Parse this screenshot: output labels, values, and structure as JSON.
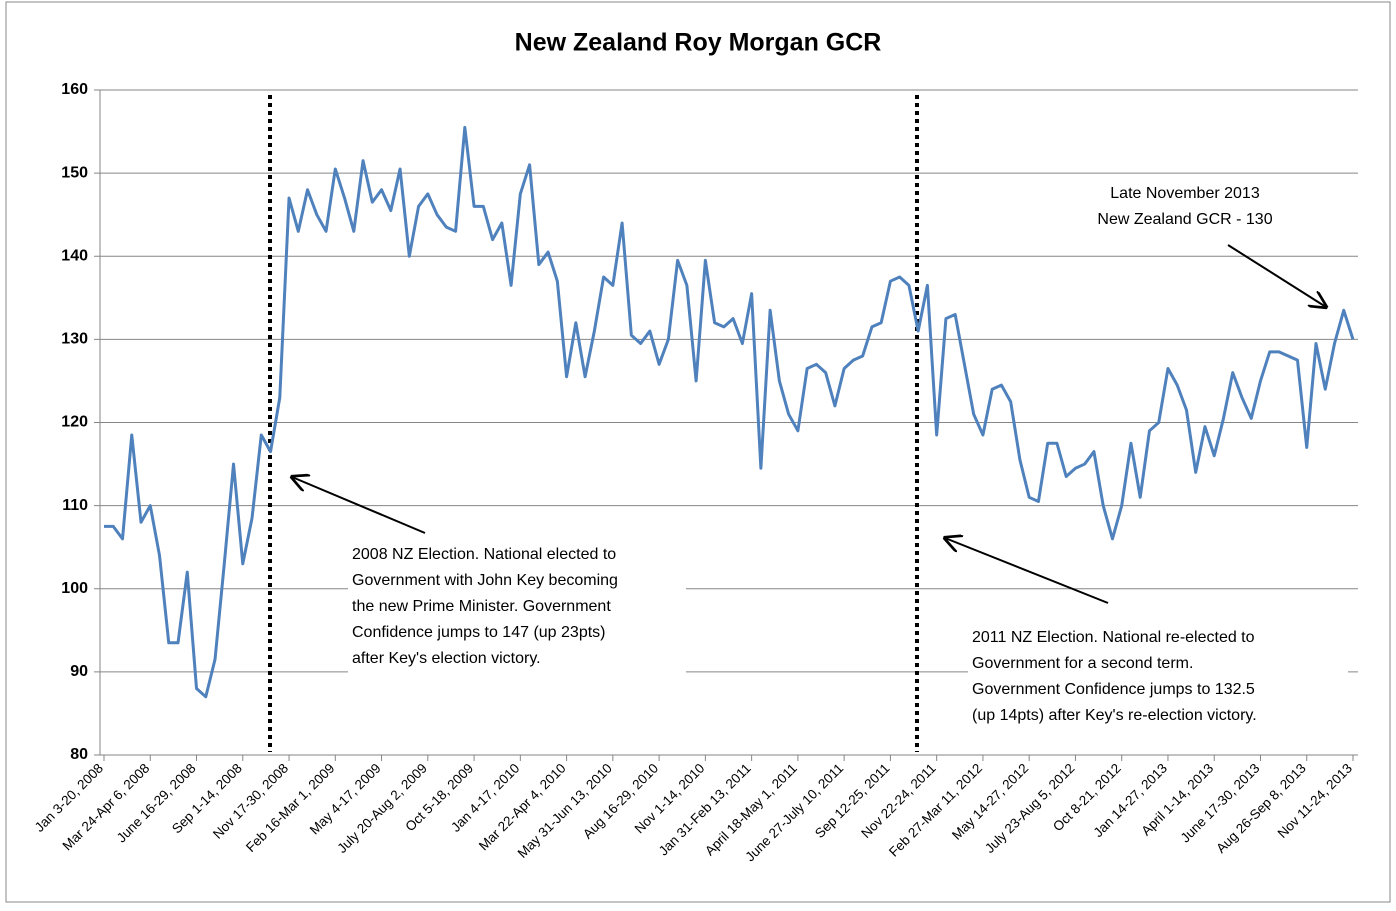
{
  "chart_data": {
    "type": "line",
    "title": "New Zealand Roy Morgan GCR",
    "categories": [
      "Jan 3-20, 2008",
      null,
      null,
      null,
      null,
      "Mar 24-Apr 6, 2008",
      null,
      null,
      null,
      null,
      "June 16-29, 2008",
      null,
      null,
      null,
      null,
      "Sep 1-14, 2008",
      null,
      null,
      null,
      null,
      "Nov 17-30, 2008",
      null,
      null,
      null,
      null,
      "Feb 16-Mar 1, 2009",
      null,
      null,
      null,
      null,
      "May 4-17, 2009",
      null,
      null,
      null,
      null,
      "July 20-Aug 2, 2009",
      null,
      null,
      null,
      null,
      "Oct 5-18, 2009",
      null,
      null,
      null,
      null,
      "Jan 4-17, 2010",
      null,
      null,
      null,
      null,
      "Mar 22-Apr 4, 2010",
      null,
      null,
      null,
      null,
      "May 31-Jun 13, 2010",
      null,
      null,
      null,
      null,
      "Aug 16-29, 2010",
      null,
      null,
      null,
      null,
      "Nov 1-14, 2010",
      null,
      null,
      null,
      null,
      "Jan 31-Feb 13, 2011",
      null,
      null,
      null,
      null,
      "April 18-May 1, 2011",
      null,
      null,
      null,
      null,
      "June 27-July 10, 2011",
      null,
      null,
      null,
      null,
      "Sep 12-25, 2011",
      null,
      null,
      null,
      null,
      "Nov 22-24, 2011",
      null,
      null,
      null,
      null,
      "Feb 27-Mar 11, 2012",
      null,
      null,
      null,
      null,
      "May 14-27, 2012",
      null,
      null,
      null,
      null,
      "July 23-Aug 5, 2012",
      null,
      null,
      null,
      null,
      "Oct 8-21, 2012",
      null,
      null,
      null,
      null,
      "Jan 14-27, 2013",
      null,
      null,
      null,
      null,
      "April 1-14, 2013",
      null,
      null,
      null,
      null,
      "June 17-30, 2013",
      null,
      null,
      null,
      null,
      "Aug 26-Sep 8, 2013",
      null,
      null,
      null,
      null,
      "Nov 11-24, 2013"
    ],
    "series": [
      {
        "name": "GCR",
        "color": "#4f81bd",
        "values": [
          107.5,
          107.5,
          106,
          118.5,
          108,
          110,
          104,
          93.5,
          93.5,
          102,
          88,
          87,
          91.5,
          103,
          115,
          103,
          108.5,
          118.5,
          116.5,
          123,
          147,
          143,
          148,
          145,
          143,
          150.5,
          147,
          143,
          151.5,
          146.5,
          148,
          145.5,
          150.5,
          140,
          146,
          147.5,
          145,
          143.5,
          143,
          155.5,
          146,
          146,
          142,
          144,
          136.5,
          147.5,
          151,
          139,
          140.5,
          137,
          125.5,
          132,
          125.5,
          131,
          137.5,
          136.5,
          144,
          130.5,
          129.5,
          131,
          127,
          130,
          139.5,
          136.5,
          125,
          139.5,
          132,
          131.5,
          132.5,
          129.5,
          135.5,
          114.5,
          133.5,
          125,
          121,
          119,
          126.5,
          127,
          126,
          122,
          126.5,
          127.5,
          128,
          131.5,
          132,
          137,
          137.5,
          136.5,
          131,
          136.5,
          118.5,
          132.5,
          133,
          127,
          121,
          118.5,
          124,
          124.5,
          122.5,
          115.5,
          111,
          110.5,
          117.5,
          117.5,
          113.5,
          114.5,
          115,
          116.5,
          110,
          106,
          110,
          117.5,
          111,
          119,
          120,
          126.5,
          124.5,
          121.5,
          114,
          119.5,
          116,
          120.5,
          126,
          123,
          120.5,
          125,
          128.5,
          128.5,
          128,
          127.5,
          117,
          129.5,
          124,
          129.5,
          133.5,
          130
        ]
      }
    ],
    "ylim": [
      80,
      160
    ],
    "yticks": [
      80,
      90,
      100,
      110,
      120,
      130,
      140,
      150,
      160
    ],
    "grid": true,
    "annotations": [
      [
        "2008 NZ Election. National elected to",
        "Government with John Key becoming",
        "the new Prime Minister. Government",
        "Confidence jumps to 147 (up 23pts)",
        "after Key's election victory."
      ],
      [
        "2011 NZ Election. National re-elected to",
        "Government for a second term.",
        "Government Confidence jumps to 132.5",
        "(up 14pts) after Key's re-election victory."
      ],
      [
        "Late November 2013",
        "New Zealand GCR - 130"
      ]
    ]
  }
}
